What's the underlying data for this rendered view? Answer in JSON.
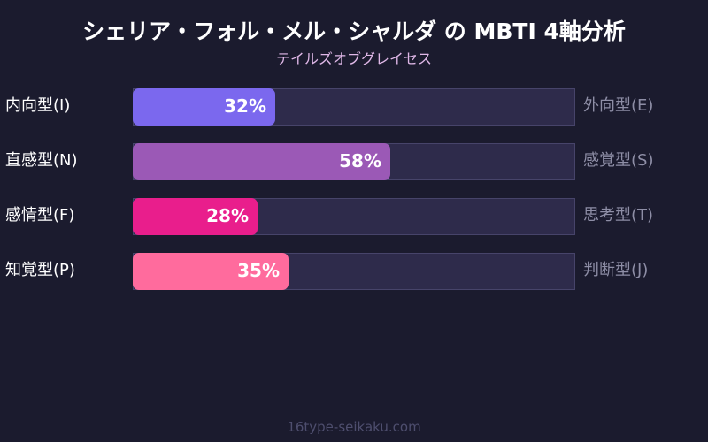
{
  "header": {
    "title": "シェリア・フォル・メル・シャルダ の MBTI 4軸分析",
    "subtitle": "テイルズオブグレイセス"
  },
  "footer": {
    "text": "16type-seikaku.com"
  },
  "rows": [
    {
      "left": "内向型(I)",
      "right": "外向型(E)",
      "value": 32,
      "label": "32%",
      "color": "#7b68ee"
    },
    {
      "left": "直感型(N)",
      "right": "感覚型(S)",
      "value": 58,
      "label": "58%",
      "color": "#9b59b6"
    },
    {
      "left": "感情型(F)",
      "right": "思考型(T)",
      "value": 28,
      "label": "28%",
      "color": "#e91e8c"
    },
    {
      "left": "知覚型(P)",
      "right": "判断型(J)",
      "value": 35,
      "label": "35%",
      "color": "#ff6b9d"
    }
  ],
  "chart_data": {
    "type": "bar",
    "orientation": "horizontal",
    "title": "シェリア・フォル・メル・シャルダ の MBTI 4軸分析",
    "subtitle": "テイルズオブグレイセス",
    "categories": [
      "内向型(I) / 外向型(E)",
      "直感型(N) / 感覚型(S)",
      "感情型(F) / 思考型(T)",
      "知覚型(P) / 判断型(J)"
    ],
    "left_labels": [
      "内向型(I)",
      "直感型(N)",
      "感情型(F)",
      "知覚型(P)"
    ],
    "right_labels": [
      "外向型(E)",
      "感覚型(S)",
      "思考型(T)",
      "判断型(J)"
    ],
    "values": [
      32,
      58,
      28,
      35
    ],
    "value_labels": [
      "32%",
      "58%",
      "28%",
      "35%"
    ],
    "colors": [
      "#7b68ee",
      "#9b59b6",
      "#e91e8c",
      "#ff6b9d"
    ],
    "xlim": [
      0,
      100
    ],
    "grid": false,
    "legend": "none",
    "source": "16type-seikaku.com"
  }
}
